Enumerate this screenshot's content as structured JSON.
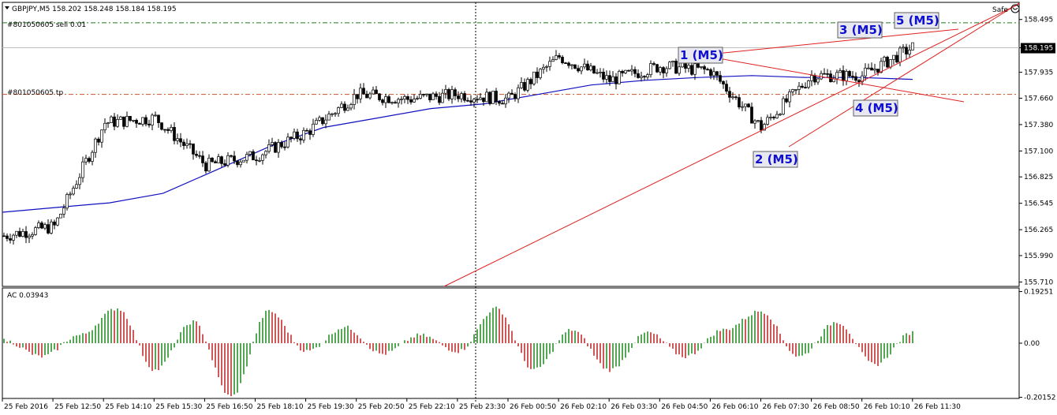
{
  "header": {
    "symbol_info": "GBPJPY,M5  158.202 158.248 158.184 158.195",
    "safe_label": "Safe"
  },
  "order_lines": {
    "sell_label": "#801050605 sell 0.01",
    "tp_label": "#801050605 tp",
    "sell_price": 158.46,
    "tp_price": 157.7,
    "sell_color": "#1a7a1a",
    "tp_color": "#d05020"
  },
  "current_price": {
    "value": 158.195,
    "label": "158.195"
  },
  "price_axis": {
    "ticks": [
      "158.495",
      "158.195",
      "157.935",
      "157.660",
      "157.380",
      "157.100",
      "156.825",
      "156.545",
      "156.265",
      "155.990",
      "155.710"
    ],
    "min": 155.68,
    "max": 158.66
  },
  "wave_labels": [
    "1 (M5)",
    "2 (M5)",
    "3 (M5)",
    "4 (M5)",
    "5 (M5)"
  ],
  "indicator": {
    "title": "AC 0.03943",
    "ticks": [
      "0.19251",
      "0.00",
      "-0.20152"
    ],
    "min": -0.2,
    "max": 0.2,
    "up_color": "#1a8a1a",
    "down_color": "#c02020"
  },
  "time_axis": {
    "ticks": [
      "25 Feb 2016",
      "25 Feb 12:50",
      "25 Feb 14:10",
      "25 Feb 15:30",
      "25 Feb 16:50",
      "25 Feb 18:10",
      "25 Feb 19:30",
      "25 Feb 20:50",
      "25 Feb 22:10",
      "25 Feb 23:30",
      "26 Feb 00:50",
      "26 Feb 02:10",
      "26 Feb 03:30",
      "26 Feb 04:50",
      "26 Feb 06:10",
      "26 Feb 07:30",
      "26 Feb 08:50",
      "26 Feb 10:10",
      "26 Feb 11:30"
    ]
  },
  "colors": {
    "ma": "#1010c0",
    "trendlines": "#e02020",
    "candles": "#000000",
    "wave_text": "#1010d0"
  },
  "chart_data": {
    "type": "candlestick",
    "symbol": "GBPJPY",
    "timeframe": "M5",
    "ohlc_shown": {
      "open": 158.202,
      "high": 158.248,
      "low": 158.184,
      "close": 158.195
    },
    "close_path": [
      {
        "t": "25 Feb 2016",
        "close": 156.2
      },
      {
        "t": "25 Feb 12:50",
        "close": 156.3
      },
      {
        "t": "25 Feb 14:10",
        "close": 157.4
      },
      {
        "t": "25 Feb 15:30",
        "close": 157.45
      },
      {
        "t": "25 Feb 16:50",
        "close": 156.95
      },
      {
        "t": "25 Feb 18:10",
        "close": 157.05
      },
      {
        "t": "25 Feb 19:30",
        "close": 157.3
      },
      {
        "t": "25 Feb 20:50",
        "close": 157.7
      },
      {
        "t": "25 Feb 22:10",
        "close": 157.65
      },
      {
        "t": "25 Feb 23:30",
        "close": 157.7
      },
      {
        "t": "26 Feb 00:50",
        "close": 157.65
      },
      {
        "t": "26 Feb 02:10",
        "close": 158.1
      },
      {
        "t": "26 Feb 03:30",
        "close": 157.85
      },
      {
        "t": "26 Feb 04:50",
        "close": 158.0
      },
      {
        "t": "26 Feb 06:10",
        "close": 157.95
      },
      {
        "t": "26 Feb 07:30",
        "close": 157.35
      },
      {
        "t": "26 Feb 08:50",
        "close": 157.9
      },
      {
        "t": "26 Feb 10:10",
        "close": 157.9
      },
      {
        "t": "26 Feb 11:30",
        "close": 158.2
      }
    ],
    "moving_average_path": [
      156.45,
      156.5,
      156.55,
      156.65,
      156.9,
      157.15,
      157.35,
      157.45,
      157.55,
      157.6,
      157.7,
      157.8,
      157.85,
      157.88,
      157.9,
      157.88,
      157.88,
      157.86
    ],
    "ac_histogram_path": [
      0.01,
      -0.05,
      0.03,
      0.13,
      -0.1,
      0.08,
      -0.2,
      0.12,
      -0.03,
      0.06,
      -0.04,
      0.03,
      -0.03,
      0.13,
      -0.1,
      0.05,
      -0.1,
      0.04,
      -0.05,
      0.05,
      0.12,
      -0.05,
      0.08,
      -0.08,
      0.04
    ],
    "ylim": [
      155.68,
      158.66
    ],
    "indicator_ylim": [
      -0.2,
      0.2
    ]
  }
}
